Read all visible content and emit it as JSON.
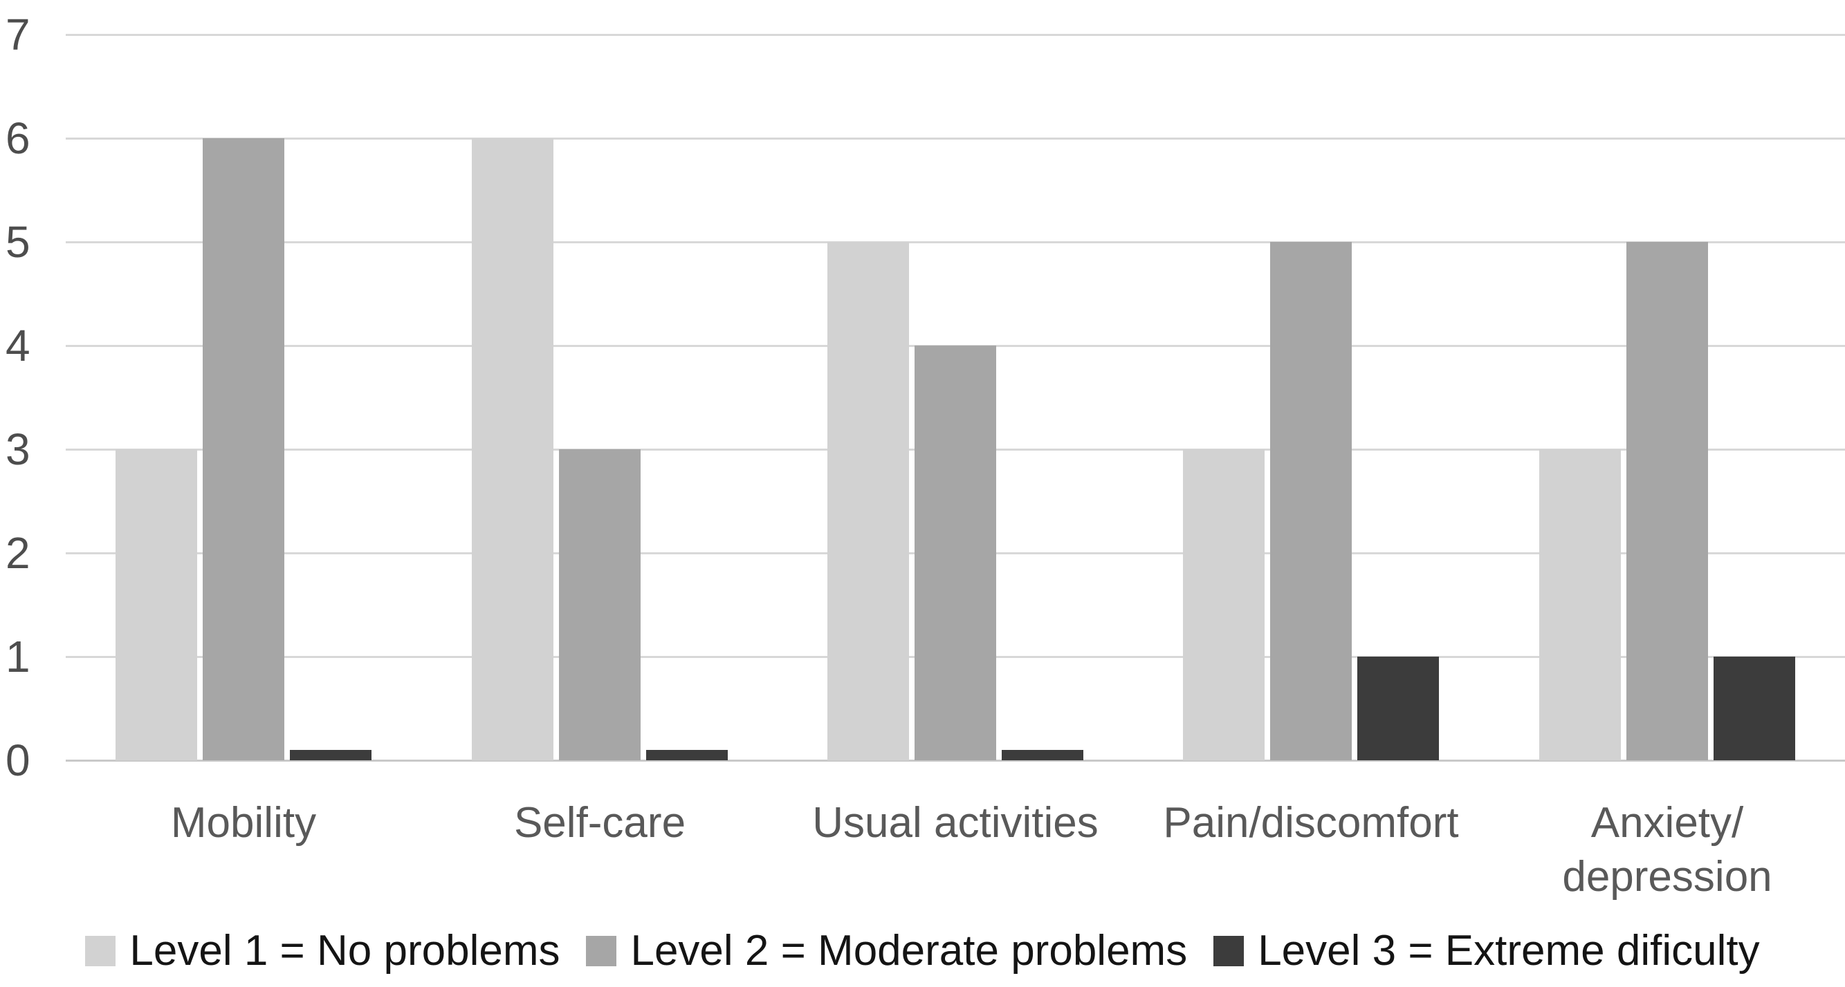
{
  "chart_data": {
    "type": "bar",
    "title": "",
    "xlabel": "",
    "ylabel": "",
    "categories": [
      "Mobility",
      "Self-care",
      "Usual activities",
      "Pain/discomfort",
      "Anxiety/ depression"
    ],
    "series": [
      {
        "name": "Level 1 = No problems",
        "color": "#d2d2d2",
        "values": [
          3,
          6,
          5,
          3,
          3
        ]
      },
      {
        "name": "Level 2 = Moderate problems",
        "color": "#a6a6a6",
        "values": [
          6,
          3,
          4,
          5,
          5
        ]
      },
      {
        "name": "Level 3 = Extreme dificulty",
        "color": "#3c3c3c",
        "values": [
          0.1,
          0.1,
          0.1,
          1,
          1
        ]
      }
    ],
    "y_ticks": [
      "0",
      "1",
      "2",
      "3",
      "4",
      "5",
      "6",
      "7"
    ],
    "ylim": [
      0,
      7
    ],
    "grid": true,
    "legend_position": "bottom"
  },
  "colors": {
    "background": "#ffffff",
    "gridline": "#d8d8d8",
    "baseline": "#c9c9c9",
    "axis_text": "#4d4d4d",
    "category_text": "#595959",
    "legend_text": "#141414"
  }
}
